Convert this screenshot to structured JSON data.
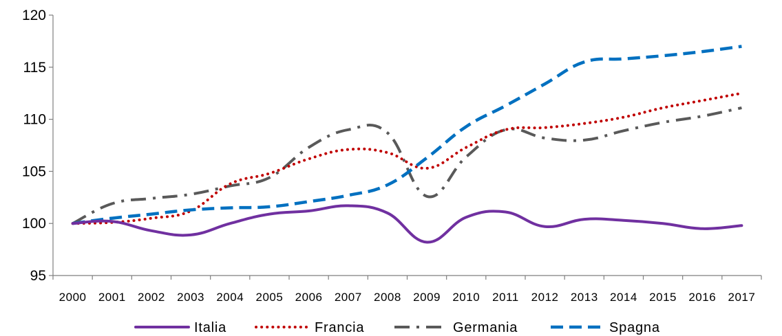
{
  "chart_data": {
    "type": "line",
    "title": "",
    "xlabel": "",
    "ylabel": "",
    "x": [
      "2000",
      "2001",
      "2002",
      "2003",
      "2004",
      "2005",
      "2006",
      "2007",
      "2008",
      "2009",
      "2010",
      "2011",
      "2012",
      "2013",
      "2014",
      "2015",
      "2016",
      "2017"
    ],
    "ylim": [
      95,
      120
    ],
    "yticks": [
      95,
      100,
      105,
      110,
      115,
      120
    ],
    "grid": false,
    "legend_position": "bottom",
    "series": [
      {
        "name": "Italia",
        "color": "#7030A0",
        "style": "solid",
        "values": [
          100.0,
          100.2,
          99.3,
          98.9,
          100.0,
          100.9,
          101.2,
          101.7,
          101.0,
          98.2,
          100.6,
          101.1,
          99.7,
          100.4,
          100.3,
          100.0,
          99.5,
          99.8
        ]
      },
      {
        "name": "Francia",
        "color": "#C00000",
        "style": "dotted",
        "values": [
          100.0,
          100.1,
          100.5,
          101.2,
          103.8,
          104.8,
          106.2,
          107.1,
          106.8,
          105.3,
          107.3,
          109.0,
          109.2,
          109.6,
          110.2,
          111.1,
          111.8,
          112.5
        ]
      },
      {
        "name": "Germania",
        "color": "#595959",
        "style": "dashdot",
        "values": [
          100.0,
          101.9,
          102.4,
          102.8,
          103.6,
          104.4,
          107.3,
          109.0,
          108.7,
          102.6,
          106.4,
          109.0,
          108.2,
          108.0,
          108.9,
          109.7,
          110.3,
          111.1
        ]
      },
      {
        "name": "Spagna",
        "color": "#0070C0",
        "style": "dashed",
        "values": [
          100.0,
          100.5,
          100.9,
          101.3,
          101.5,
          101.6,
          102.1,
          102.7,
          103.7,
          106.3,
          109.3,
          111.3,
          113.4,
          115.5,
          115.8,
          116.1,
          116.5,
          117.0
        ]
      }
    ]
  }
}
